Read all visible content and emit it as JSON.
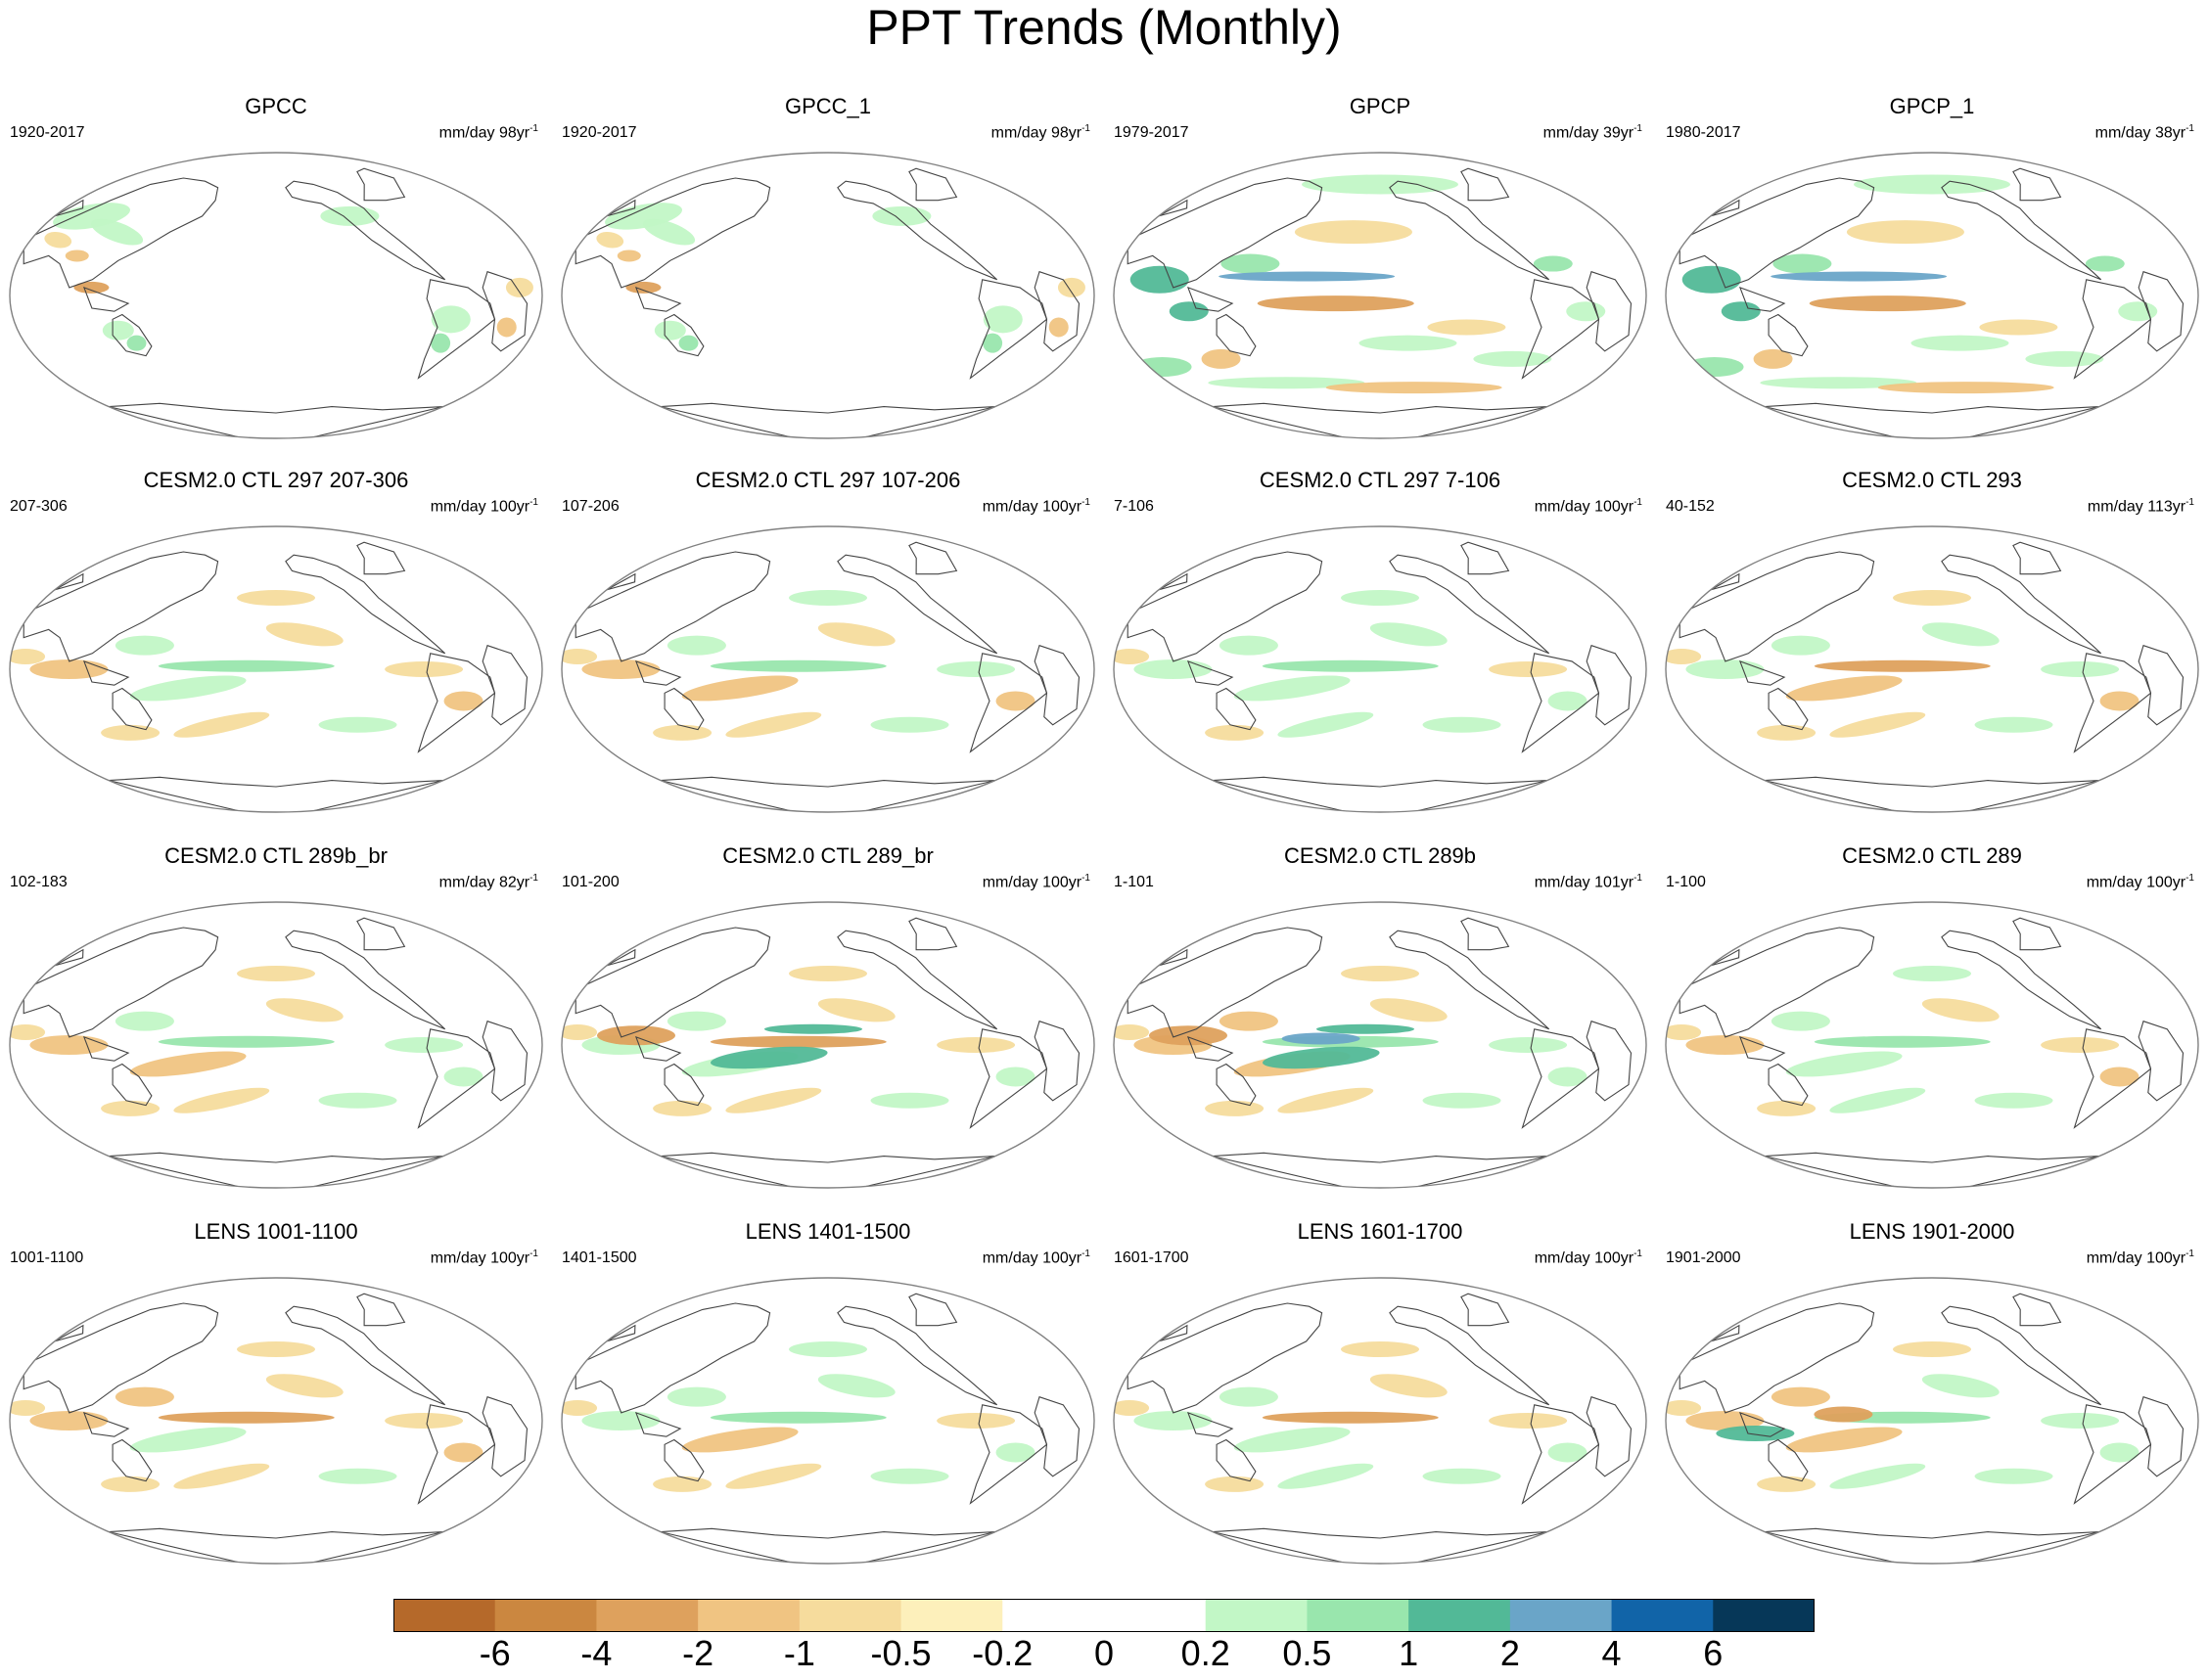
{
  "title": "PPT Trends (Monthly)",
  "palette": {
    "outline": "#808080",
    "coast": "#444444",
    "dry": [
      "#b5692a",
      "#cb8740",
      "#dea15d",
      "#f0c482",
      "#f6dc9d",
      "#fdf0bb"
    ],
    "neutral": "#ffffff",
    "wet": [
      "#c2f7c6",
      "#99e6ad",
      "#52b997",
      "#6aa5c8",
      "#1164a8",
      "#063758"
    ]
  },
  "panels": [
    {
      "title": "GPCC",
      "period": "1920-2017",
      "units": "mm/day 98yr",
      "exp": "-1",
      "coverage": "land"
    },
    {
      "title": "GPCC_1",
      "period": "1920-2017",
      "units": "mm/day 98yr",
      "exp": "-1",
      "coverage": "land"
    },
    {
      "title": "GPCP",
      "period": "1979-2017",
      "units": "mm/day 39yr",
      "exp": "-1",
      "coverage": "global"
    },
    {
      "title": "GPCP_1",
      "period": "1980-2017",
      "units": "mm/day 38yr",
      "exp": "-1",
      "coverage": "global"
    },
    {
      "title": "CESM2.0 CTL 297 207-306",
      "period": "207-306",
      "units": "mm/day 100yr",
      "exp": "-1",
      "coverage": "model"
    },
    {
      "title": "CESM2.0 CTL 297 107-206",
      "period": "107-206",
      "units": "mm/day 100yr",
      "exp": "-1",
      "coverage": "model"
    },
    {
      "title": "CESM2.0 CTL 297 7-106",
      "period": "7-106",
      "units": "mm/day 100yr",
      "exp": "-1",
      "coverage": "model"
    },
    {
      "title": "CESM2.0 CTL 293",
      "period": "40-152",
      "units": "mm/day 113yr",
      "exp": "-1",
      "coverage": "model"
    },
    {
      "title": "CESM2.0 CTL 289b_br",
      "period": "102-183",
      "units": "mm/day 82yr",
      "exp": "-1",
      "coverage": "model"
    },
    {
      "title": "CESM2.0 CTL 289_br",
      "period": "101-200",
      "units": "mm/day 100yr",
      "exp": "-1",
      "coverage": "model"
    },
    {
      "title": "CESM2.0 CTL 289b",
      "period": "1-101",
      "units": "mm/day 101yr",
      "exp": "-1",
      "coverage": "model"
    },
    {
      "title": "CESM2.0 CTL 289",
      "period": "1-100",
      "units": "mm/day 100yr",
      "exp": "-1",
      "coverage": "model"
    },
    {
      "title": "LENS 1001-1100",
      "period": "1001-1100",
      "units": "mm/day 100yr",
      "exp": "-1",
      "coverage": "model"
    },
    {
      "title": "LENS 1401-1500",
      "period": "1401-1500",
      "units": "mm/day 100yr",
      "exp": "-1",
      "coverage": "model"
    },
    {
      "title": "LENS 1601-1700",
      "period": "1601-1700",
      "units": "mm/day 100yr",
      "exp": "-1",
      "coverage": "model"
    },
    {
      "title": "LENS 1901-2000",
      "period": "1901-2000",
      "units": "mm/day 100yr",
      "exp": "-1",
      "coverage": "model"
    }
  ],
  "colorbar": {
    "labels": [
      "-6",
      "-4",
      "-2",
      "-1",
      "-0.5",
      "-0.2",
      "0",
      "0.2",
      "0.5",
      "1",
      "2",
      "4",
      "6"
    ],
    "colors": [
      "#b5692a",
      "#cb8740",
      "#dea15d",
      "#f0c482",
      "#f6dc9d",
      "#fdf0bb",
      "#ffffff",
      "#ffffff",
      "#c2f7c6",
      "#99e6ad",
      "#52b997",
      "#6aa5c8",
      "#1164a8",
      "#063758"
    ]
  }
}
